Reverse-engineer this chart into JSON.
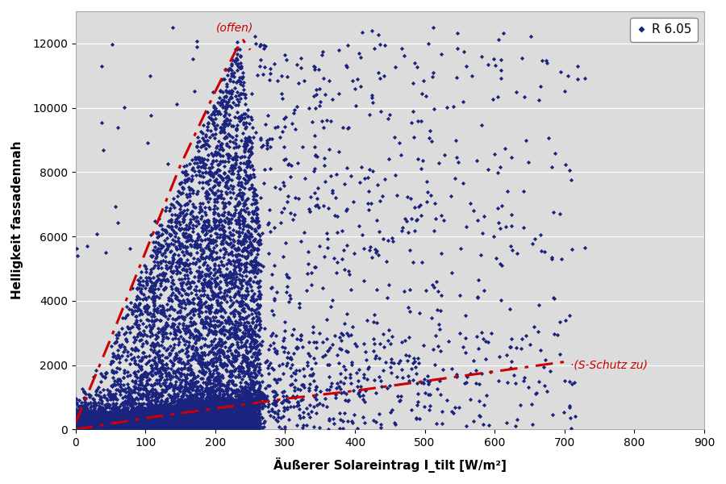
{
  "title": "",
  "xlabel": "Äußerer Solareintrag I_tilt [W/m²]",
  "ylabel": "Helligkeit fassadennah",
  "xlim": [
    0,
    900
  ],
  "ylim": [
    0,
    13000
  ],
  "xticks": [
    0,
    100,
    200,
    300,
    400,
    500,
    600,
    700,
    800,
    900
  ],
  "yticks": [
    0,
    2000,
    4000,
    6000,
    8000,
    10000,
    12000
  ],
  "dot_color": "#1a237e",
  "dot_size": 7,
  "legend_label": "R 6.05",
  "bg_color": "#dcdcdc",
  "line_color": "#cc0000",
  "label_offen": "(offen)",
  "label_schutz": "(S-Schutz zu)",
  "random_seed": 42,
  "xlabel_display": "Äußerer Solareintrag I_tilt [W/m²]"
}
